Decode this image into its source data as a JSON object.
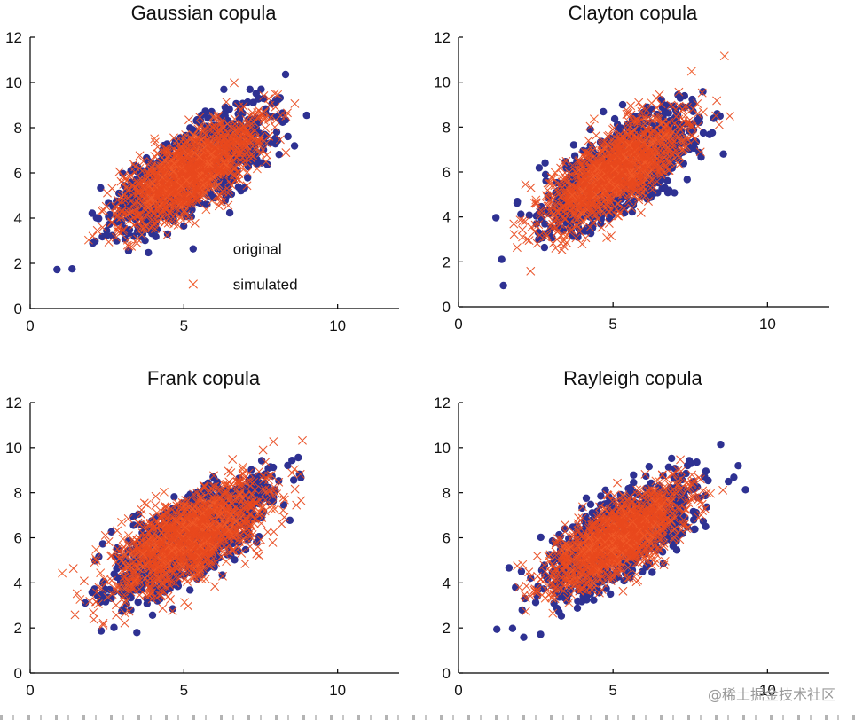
{
  "colors": {
    "original": "#2e3192",
    "simulated": "#f05a28",
    "simulated_dense": "#e8491d"
  },
  "legend": {
    "original": "original",
    "simulated": "simulated"
  },
  "watermark": "@稀土掘金技术社区",
  "chart_data": [
    {
      "type": "scatter",
      "title": "Gaussian copula",
      "xlim": [
        0,
        12
      ],
      "ylim": [
        0,
        12
      ],
      "xticks": [
        0,
        5,
        10
      ],
      "yticks": [
        0,
        2,
        4,
        6,
        8,
        10,
        12
      ],
      "series": [
        {
          "name": "original",
          "marker": "dot",
          "center": [
            5.2,
            6.0
          ],
          "spread": [
            1.15,
            1.2
          ],
          "correlation": 0.72,
          "n": 1300
        },
        {
          "name": "simulated",
          "marker": "x",
          "center": [
            5.2,
            6.0
          ],
          "spread": [
            1.1,
            1.15
          ],
          "correlation": 0.72,
          "n": 1300
        }
      ],
      "legend": true
    },
    {
      "type": "scatter",
      "title": "Clayton copula",
      "xlim": [
        0,
        12
      ],
      "ylim": [
        0,
        12
      ],
      "xticks": [
        0,
        5,
        10
      ],
      "yticks": [
        0,
        2,
        4,
        6,
        8,
        10,
        12
      ],
      "series": [
        {
          "name": "original",
          "marker": "dot",
          "center": [
            5.2,
            6.0
          ],
          "spread": [
            1.15,
            1.2
          ],
          "correlation": 0.72,
          "n": 1300
        },
        {
          "name": "simulated",
          "marker": "x",
          "center": [
            5.0,
            6.0
          ],
          "spread": [
            1.1,
            1.2
          ],
          "correlation": 0.74,
          "n": 1300
        }
      ],
      "legend": false
    },
    {
      "type": "scatter",
      "title": "Frank copula",
      "xlim": [
        0,
        12
      ],
      "ylim": [
        0,
        12
      ],
      "xticks": [
        0,
        5,
        10
      ],
      "yticks": [
        0,
        2,
        4,
        6,
        8,
        10,
        12
      ],
      "series": [
        {
          "name": "original",
          "marker": "dot",
          "center": [
            5.2,
            6.0
          ],
          "spread": [
            1.15,
            1.2
          ],
          "correlation": 0.72,
          "n": 1300
        },
        {
          "name": "simulated",
          "marker": "x",
          "center": [
            5.2,
            6.0
          ],
          "spread": [
            1.25,
            1.25
          ],
          "correlation": 0.68,
          "n": 1300
        }
      ],
      "legend": false
    },
    {
      "type": "scatter",
      "title": "Rayleigh copula",
      "xlim": [
        0,
        12
      ],
      "ylim": [
        0,
        12
      ],
      "xticks": [
        0,
        5,
        10
      ],
      "yticks": [
        0,
        2,
        4,
        6,
        8,
        10,
        12
      ],
      "series": [
        {
          "name": "original",
          "marker": "dot",
          "center": [
            5.2,
            6.0
          ],
          "spread": [
            1.15,
            1.2
          ],
          "correlation": 0.72,
          "n": 1300
        },
        {
          "name": "simulated",
          "marker": "x",
          "center": [
            5.15,
            6.0
          ],
          "spread": [
            1.1,
            1.15
          ],
          "correlation": 0.74,
          "n": 1300
        }
      ],
      "legend": false
    }
  ]
}
